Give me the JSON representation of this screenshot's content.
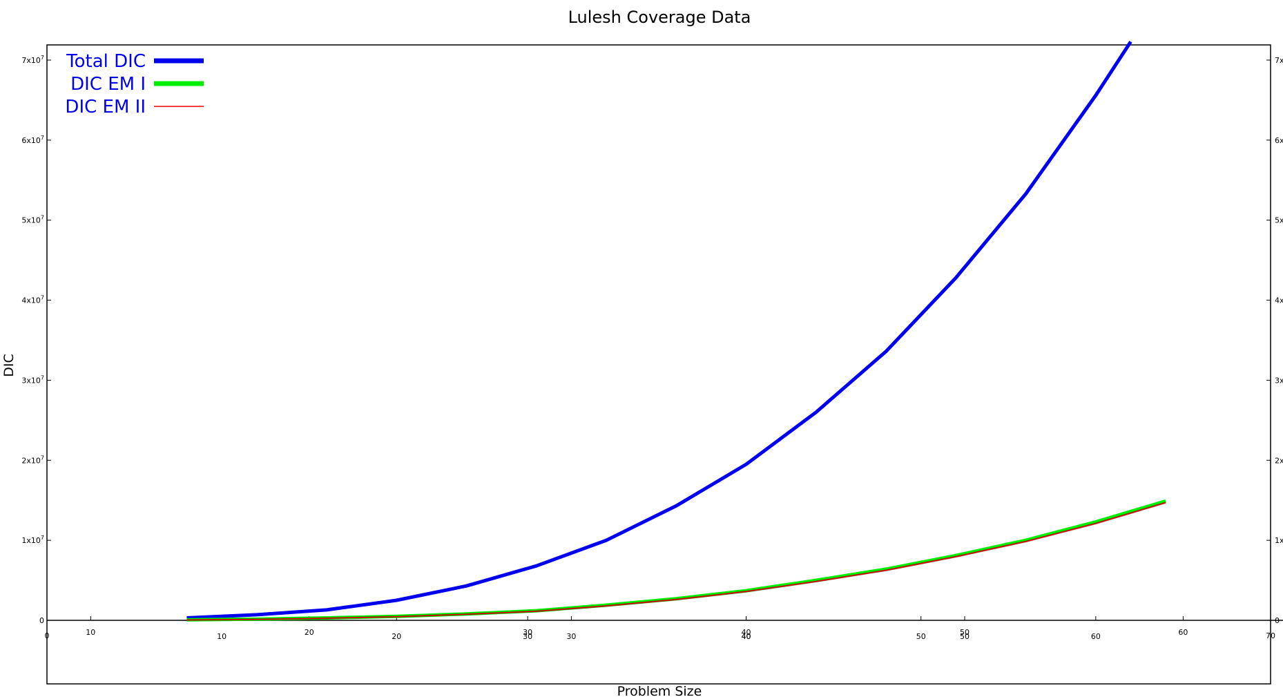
{
  "chart_data": {
    "type": "line",
    "title": "Lulesh Coverage Data",
    "xlabel": "Problem Size",
    "ylabel": "DIC",
    "xlim": [
      0,
      70
    ],
    "ylim": [
      0,
      72000000
    ],
    "yticks": [
      {
        "value": 0,
        "label": "0"
      },
      {
        "value": 10000000,
        "label": "1x10",
        "exp": "7"
      },
      {
        "value": 20000000,
        "label": "2x10",
        "exp": "7"
      },
      {
        "value": 30000000,
        "label": "3x10",
        "exp": "7"
      },
      {
        "value": 40000000,
        "label": "4x10",
        "exp": "7"
      },
      {
        "value": 50000000,
        "label": "5x10",
        "exp": "7"
      },
      {
        "value": 60000000,
        "label": "6x10",
        "exp": "7"
      },
      {
        "value": 70000000,
        "label": "7x10",
        "exp": "7"
      }
    ],
    "right_yticks": [
      {
        "value": 0,
        "label": "0"
      },
      {
        "value": 10000000,
        "label": "1x"
      },
      {
        "value": 20000000,
        "label": "2x"
      },
      {
        "value": 30000000,
        "label": "3x"
      },
      {
        "value": 40000000,
        "label": "4x"
      },
      {
        "value": 50000000,
        "label": "5x"
      },
      {
        "value": 60000000,
        "label": "6x"
      },
      {
        "value": 70000000,
        "label": "7x"
      }
    ],
    "xtick_rows": [
      {
        "row": "axis",
        "ticks": [
          {
            "value": 0,
            "label": "0"
          },
          {
            "value": 70,
            "label": "70"
          }
        ]
      },
      {
        "row": "upper",
        "ticks": [
          {
            "value": 2.5,
            "label": "10"
          },
          {
            "value": 15,
            "label": "20"
          },
          {
            "value": 27.5,
            "label": "30"
          },
          {
            "value": 40,
            "label": "40"
          },
          {
            "value": 52.5,
            "label": "50"
          },
          {
            "value": 65,
            "label": "60"
          }
        ]
      },
      {
        "row": "middle",
        "ticks": [
          {
            "value": 27.5,
            "label": "30"
          },
          {
            "value": 40,
            "label": "40"
          },
          {
            "value": 52.5,
            "label": "50"
          }
        ]
      },
      {
        "row": "lower",
        "ticks": [
          {
            "value": 10,
            "label": "10"
          },
          {
            "value": 20,
            "label": "20"
          },
          {
            "value": 30,
            "label": "30"
          },
          {
            "value": 40,
            "label": "40"
          },
          {
            "value": 50,
            "label": "50"
          },
          {
            "value": 60,
            "label": "60"
          }
        ]
      }
    ],
    "legend_position": "top-left",
    "grid": false,
    "series": [
      {
        "name": "Total DIC",
        "color": "#0000ee",
        "width": 5,
        "x": [
          8,
          12,
          16,
          20,
          24,
          28,
          32,
          36,
          40,
          44,
          48,
          52,
          56,
          60,
          62
        ],
        "y": [
          300000,
          700000,
          1300000,
          2500000,
          4300000,
          6800000,
          10000000,
          14300000,
          19500000,
          26000000,
          33600000,
          42800000,
          53300000,
          65600000,
          72300000
        ]
      },
      {
        "name": "DIC EM I",
        "color": "#00ee00",
        "width": 5,
        "x": [
          8,
          12,
          16,
          20,
          24,
          28,
          32,
          36,
          40,
          44,
          48,
          52,
          56,
          60,
          64
        ],
        "y": [
          60000,
          150000,
          300000,
          500000,
          800000,
          1200000,
          1900000,
          2700000,
          3700000,
          5000000,
          6400000,
          8100000,
          10000000,
          12300000,
          14900000
        ]
      },
      {
        "name": "DIC EM II",
        "color": "#ee0000",
        "width": 1.5,
        "x": [
          8,
          12,
          16,
          20,
          24,
          28,
          32,
          36,
          40,
          44,
          48,
          52,
          56,
          60,
          64
        ],
        "y": [
          40000,
          120000,
          260000,
          460000,
          750000,
          1130000,
          1800000,
          2600000,
          3600000,
          4850000,
          6250000,
          7950000,
          9850000,
          12100000,
          14700000
        ]
      }
    ]
  }
}
